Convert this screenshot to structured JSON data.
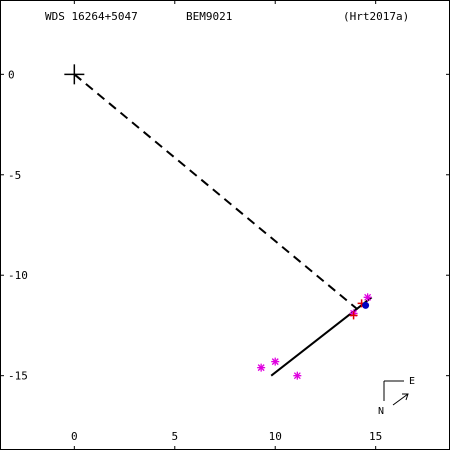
{
  "header": {
    "left": "WDS 16264+5047",
    "middle": "BEM9021",
    "right": "(Hrt2017a)"
  },
  "orientation": {
    "east_label": "E",
    "north_label": "N"
  },
  "chart_data": {
    "type": "scatter",
    "title": "",
    "xlabel": "",
    "ylabel": "",
    "xlim": [
      -3.7,
      18.7
    ],
    "ylim": [
      -18.7,
      3.7
    ],
    "x_ticks": [
      {
        "value": 0,
        "label": "0"
      },
      {
        "value": 5,
        "label": "5"
      },
      {
        "value": 10,
        "label": "10"
      },
      {
        "value": 15,
        "label": "15"
      }
    ],
    "y_ticks": [
      {
        "value": 0,
        "label": "0"
      },
      {
        "value": -5,
        "label": "-5"
      },
      {
        "value": -10,
        "label": "-10"
      },
      {
        "value": -15,
        "label": "-15"
      }
    ],
    "primary": {
      "x": 0,
      "y": 0
    },
    "dashed_line": {
      "from": [
        0,
        0
      ],
      "to": [
        14.1,
        -11.7
      ]
    },
    "orbit_line": {
      "from": [
        9.8,
        -15.0
      ],
      "to": [
        14.8,
        -11.1
      ]
    },
    "series": [
      {
        "marker": "asterisk",
        "color": "#e000e0",
        "points": [
          [
            9.3,
            -14.6
          ],
          [
            10.0,
            -14.3
          ],
          [
            11.1,
            -15.0
          ],
          [
            13.9,
            -11.9
          ],
          [
            14.6,
            -11.1
          ]
        ]
      },
      {
        "marker": "plus",
        "color": "#e00000",
        "points": [
          [
            13.9,
            -12.0
          ],
          [
            14.3,
            -11.4
          ]
        ]
      },
      {
        "marker": "dot",
        "color": "#0000c0",
        "points": [
          [
            14.5,
            -11.5
          ]
        ]
      }
    ]
  }
}
